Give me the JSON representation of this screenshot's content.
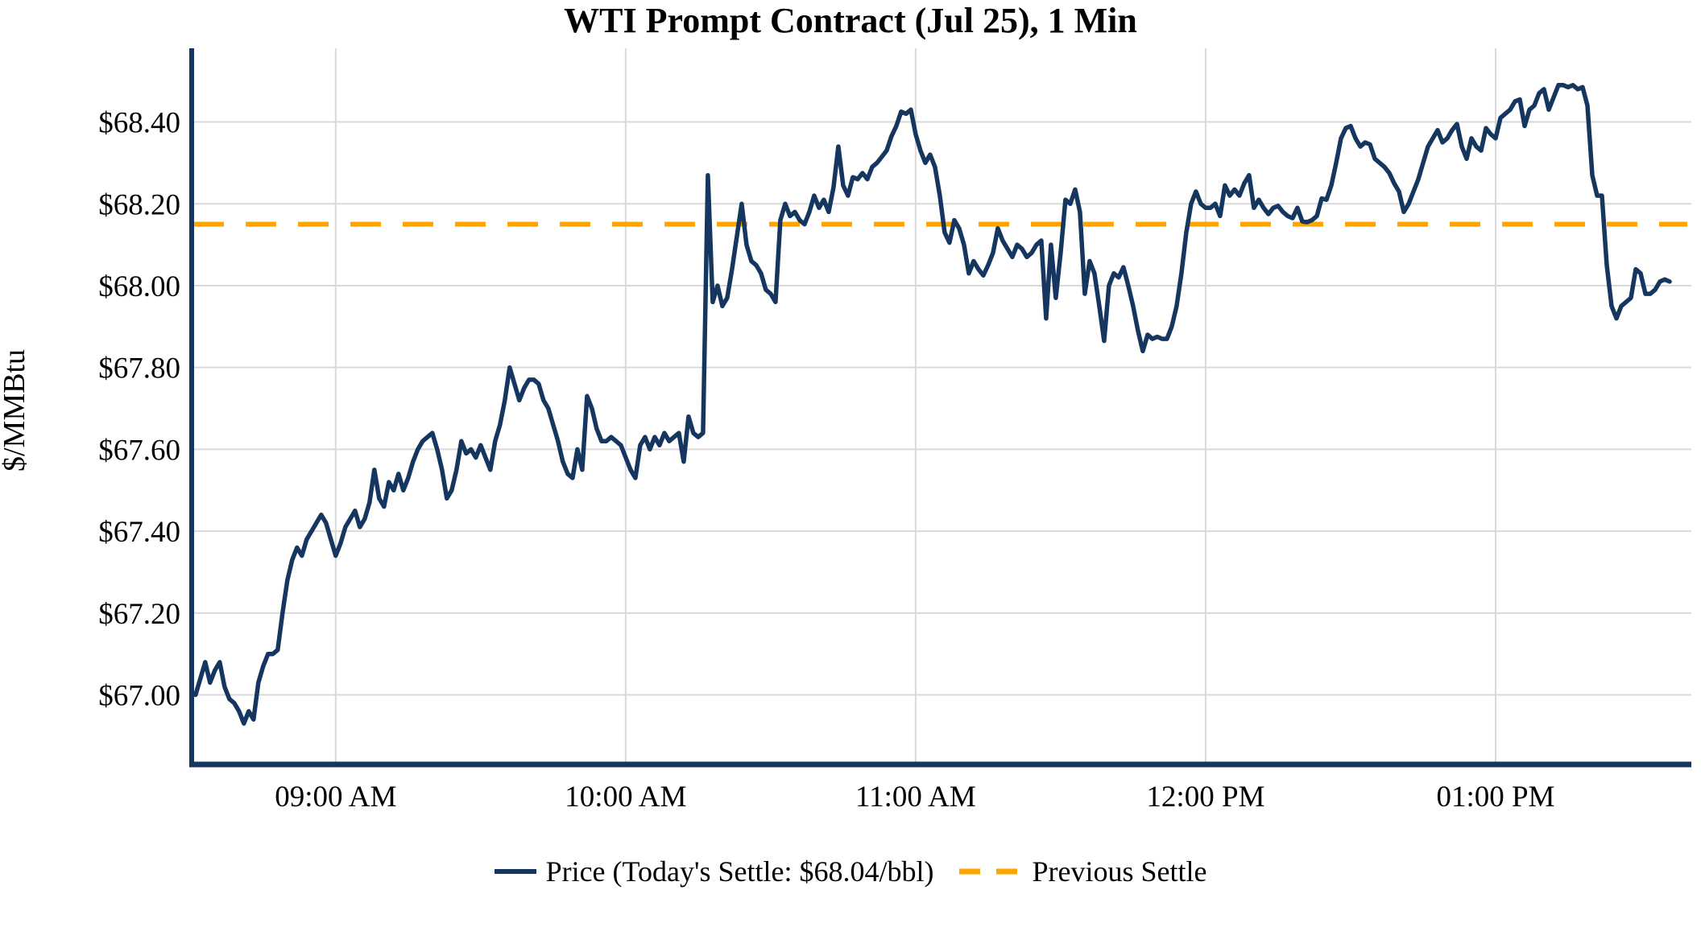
{
  "chart_data": {
    "type": "line",
    "title": "WTI Prompt Contract (Jul 25), 1 Min",
    "ylabel": "$/MMBtu",
    "grid": true,
    "legend_position": "bottom-center",
    "colors": {
      "price_line": "#14365f",
      "previous_settle_line": "#FFA500",
      "axis_spine": "#14365f",
      "gridline": "#d9d9d9",
      "text": "#000000"
    },
    "x_ticks": [
      {
        "minute": 60,
        "label": "09:00 AM"
      },
      {
        "minute": 120,
        "label": "10:00 AM"
      },
      {
        "minute": 180,
        "label": "11:00 AM"
      },
      {
        "minute": 240,
        "label": "12:00 PM"
      },
      {
        "minute": 300,
        "label": "01:00 PM"
      }
    ],
    "y_ticks": [
      {
        "value": 67.0,
        "label": "$67.00"
      },
      {
        "value": 67.2,
        "label": "$67.20"
      },
      {
        "value": 67.4,
        "label": "$67.40"
      },
      {
        "value": 67.6,
        "label": "$67.60"
      },
      {
        "value": 67.8,
        "label": "$67.80"
      },
      {
        "value": 68.0,
        "label": "$68.00"
      },
      {
        "value": 68.2,
        "label": "$68.20"
      },
      {
        "value": 68.4,
        "label": "$68.40"
      }
    ],
    "xlim_minutes_after_0800": [
      30.2,
      340.5
    ],
    "ylim": [
      66.83,
      68.58
    ],
    "today_settle_label": "$68.04/bbl",
    "previous_settle_value": 68.15,
    "series": [
      {
        "name": "Price (Today's Settle: $68.04/bbl)",
        "style": "solid",
        "color": "#14365f",
        "start_minute_after_0800": 31,
        "step_minutes": 1,
        "values": [
          67.0,
          67.04,
          67.08,
          67.03,
          67.06,
          67.08,
          67.02,
          66.99,
          66.98,
          66.96,
          66.93,
          66.96,
          66.94,
          67.03,
          67.07,
          67.1,
          67.1,
          67.11,
          67.2,
          67.28,
          67.33,
          67.36,
          67.34,
          67.38,
          67.4,
          67.42,
          67.44,
          67.42,
          67.38,
          67.34,
          67.37,
          67.41,
          67.43,
          67.45,
          67.41,
          67.43,
          67.47,
          67.55,
          67.48,
          67.46,
          67.52,
          67.5,
          67.54,
          67.5,
          67.53,
          67.57,
          67.6,
          67.62,
          67.63,
          67.64,
          67.6,
          67.55,
          67.48,
          67.5,
          67.55,
          67.62,
          67.59,
          67.6,
          67.58,
          67.61,
          67.58,
          67.55,
          67.62,
          67.66,
          67.72,
          67.8,
          67.76,
          67.72,
          67.75,
          67.77,
          67.77,
          67.76,
          67.72,
          67.7,
          67.66,
          67.62,
          67.57,
          67.54,
          67.53,
          67.6,
          67.55,
          67.73,
          67.7,
          67.65,
          67.62,
          67.62,
          67.63,
          67.62,
          67.61,
          67.58,
          67.55,
          67.53,
          67.61,
          67.63,
          67.6,
          67.63,
          67.61,
          67.64,
          67.62,
          67.63,
          67.64,
          67.57,
          67.68,
          67.64,
          67.63,
          67.64,
          68.27,
          67.96,
          68.0,
          67.95,
          67.97,
          68.04,
          68.12,
          68.2,
          68.1,
          68.06,
          68.05,
          68.03,
          67.99,
          67.98,
          67.96,
          68.16,
          68.2,
          68.17,
          68.18,
          68.16,
          68.15,
          68.18,
          68.22,
          68.19,
          68.21,
          68.18,
          68.24,
          68.34,
          68.245,
          68.22,
          68.265,
          68.26,
          68.275,
          68.26,
          68.29,
          68.3,
          68.315,
          68.33,
          68.365,
          68.39,
          68.425,
          68.42,
          68.43,
          68.37,
          68.33,
          68.3,
          68.32,
          68.29,
          68.22,
          68.13,
          68.105,
          68.16,
          68.14,
          68.1,
          68.03,
          68.06,
          68.04,
          68.025,
          68.05,
          68.08,
          68.14,
          68.11,
          68.09,
          68.07,
          68.1,
          68.09,
          68.07,
          68.08,
          68.1,
          68.11,
          67.92,
          68.1,
          67.97,
          68.08,
          68.21,
          68.2,
          68.235,
          68.18,
          67.98,
          68.06,
          68.03,
          67.95,
          67.865,
          68.0,
          68.03,
          68.02,
          68.045,
          68.0,
          67.95,
          67.89,
          67.84,
          67.88,
          67.87,
          67.875,
          67.87,
          67.87,
          67.9,
          67.95,
          68.03,
          68.13,
          68.2,
          68.23,
          68.2,
          68.19,
          68.19,
          68.2,
          68.17,
          68.245,
          68.22,
          68.235,
          68.22,
          68.25,
          68.27,
          68.19,
          68.21,
          68.19,
          68.175,
          68.19,
          68.195,
          68.18,
          68.17,
          68.165,
          68.19,
          68.157,
          68.155,
          68.16,
          68.17,
          68.213,
          68.21,
          68.245,
          68.3,
          68.36,
          68.385,
          68.39,
          68.36,
          68.34,
          68.35,
          68.345,
          68.31,
          68.3,
          68.29,
          68.275,
          68.25,
          68.23,
          68.18,
          68.2,
          68.23,
          68.26,
          68.3,
          68.34,
          68.36,
          68.38,
          68.35,
          68.36,
          68.38,
          68.395,
          68.34,
          68.31,
          68.36,
          68.34,
          68.33,
          68.385,
          68.37,
          68.36,
          68.41,
          68.42,
          68.43,
          68.45,
          68.455,
          68.39,
          68.43,
          68.44,
          68.47,
          68.48,
          68.43,
          68.46,
          68.49,
          68.49,
          68.485,
          68.49,
          68.48,
          68.485,
          68.44,
          68.27,
          68.22,
          68.22,
          68.05,
          67.95,
          67.92,
          67.95,
          67.96,
          67.97,
          68.04,
          68.03,
          67.98,
          67.98,
          67.99,
          68.01,
          68.015,
          68.01
        ]
      },
      {
        "name": "Previous Settle",
        "style": "dashed",
        "color": "#FFA500",
        "value": 68.15
      }
    ]
  },
  "legend": {
    "price_label": "Price (Today's Settle: $68.04/bbl)",
    "previous_settle_label": "Previous Settle"
  }
}
